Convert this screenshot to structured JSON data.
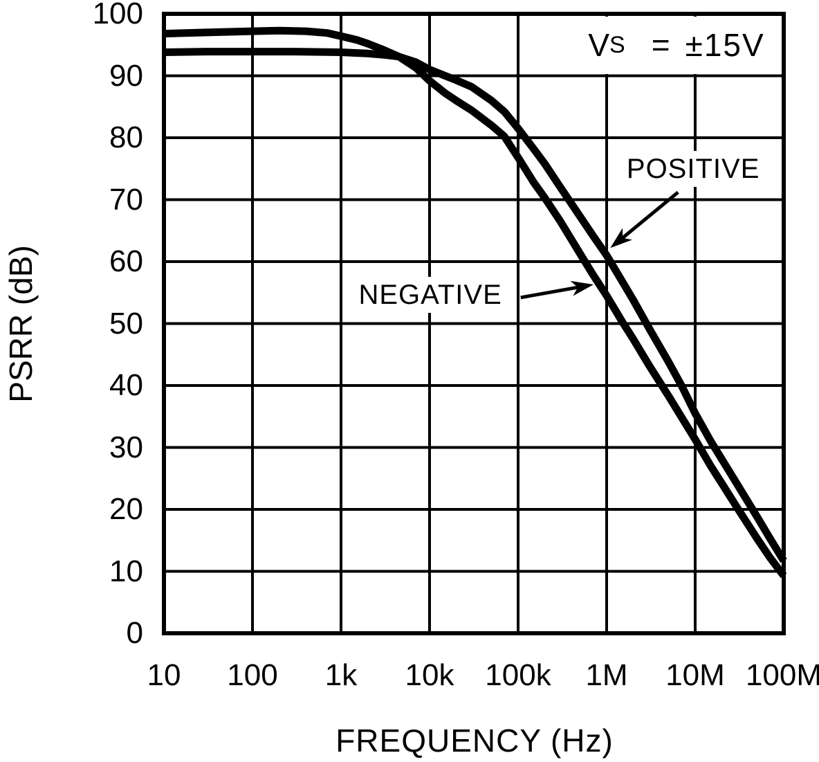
{
  "chart_data": {
    "type": "line",
    "title": "",
    "xlabel": "FREQUENCY (Hz)",
    "ylabel": "PSRR (dB)",
    "x_scale": "log",
    "xlim": [
      10,
      100000000
    ],
    "ylim": [
      0,
      100
    ],
    "grid": true,
    "legend_position": "none",
    "background_color": "#ffffff",
    "line_color": "#000000",
    "x_ticks": [
      {
        "f": 10,
        "label": "10"
      },
      {
        "f": 100,
        "label": "100"
      },
      {
        "f": 1000,
        "label": "1k"
      },
      {
        "f": 10000,
        "label": "10k"
      },
      {
        "f": 100000,
        "label": "100k"
      },
      {
        "f": 1000000,
        "label": "1M"
      },
      {
        "f": 10000000,
        "label": "10M"
      },
      {
        "f": 100000000,
        "label": "100M"
      }
    ],
    "y_ticks": [
      {
        "db": 0,
        "label": "0"
      },
      {
        "db": 10,
        "label": "10"
      },
      {
        "db": 20,
        "label": "20"
      },
      {
        "db": 30,
        "label": "30"
      },
      {
        "db": 40,
        "label": "40"
      },
      {
        "db": 50,
        "label": "50"
      },
      {
        "db": 60,
        "label": "60"
      },
      {
        "db": 70,
        "label": "70"
      },
      {
        "db": 80,
        "label": "80"
      },
      {
        "db": 90,
        "label": "90"
      },
      {
        "db": 100,
        "label": "100"
      }
    ],
    "annotation": {
      "text": "VS = ±15V",
      "var": "V",
      "sub": "S",
      "eq": "=",
      "value": "±15V"
    },
    "series": [
      {
        "name": "POSITIVE",
        "label_pos": {
          "f": 9500000,
          "db": 75
        },
        "arrow": {
          "from": {
            "f": 6400000,
            "db": 71.2
          },
          "to": {
            "f": 1100000,
            "db": 62.2
          }
        },
        "points": [
          [
            10,
            93.8
          ],
          [
            30,
            93.9
          ],
          [
            100,
            93.9
          ],
          [
            300,
            93.9
          ],
          [
            1000,
            93.8
          ],
          [
            2000,
            93.6
          ],
          [
            3000,
            93.4
          ],
          [
            4500,
            93.1
          ],
          [
            7000,
            92.2
          ],
          [
            10000,
            91.0
          ],
          [
            15000,
            90.0
          ],
          [
            20000,
            89.3
          ],
          [
            30000,
            88.2
          ],
          [
            50000,
            86.0
          ],
          [
            70000,
            84.2
          ],
          [
            100000,
            81.5
          ],
          [
            150000,
            78.2
          ],
          [
            200000,
            75.8
          ],
          [
            300000,
            72.0
          ],
          [
            500000,
            67.3
          ],
          [
            700000,
            64.2
          ],
          [
            1000000,
            61.0
          ],
          [
            1500000,
            56.8
          ],
          [
            2000000,
            53.8
          ],
          [
            3000000,
            49.3
          ],
          [
            5000000,
            43.8
          ],
          [
            7000000,
            40.0
          ],
          [
            10000000,
            35.5
          ],
          [
            15000000,
            31.0
          ],
          [
            20000000,
            28.1
          ],
          [
            30000000,
            24.0
          ],
          [
            50000000,
            18.8
          ],
          [
            70000000,
            15.3
          ],
          [
            100000000,
            11.7
          ]
        ]
      },
      {
        "name": "NEGATIVE",
        "label_pos": {
          "f": 10200,
          "db": 54.6
        },
        "arrow": {
          "from": {
            "f": 107000,
            "db": 54.2
          },
          "to": {
            "f": 710000,
            "db": 56.3
          }
        },
        "points": [
          [
            10,
            96.8
          ],
          [
            30,
            97.0
          ],
          [
            100,
            97.2
          ],
          [
            200,
            97.3
          ],
          [
            400,
            97.2
          ],
          [
            700,
            96.9
          ],
          [
            1000,
            96.4
          ],
          [
            1500,
            95.8
          ],
          [
            2000,
            95.2
          ],
          [
            3000,
            94.2
          ],
          [
            4500,
            93.1
          ],
          [
            7000,
            91.3
          ],
          [
            10000,
            89.2
          ],
          [
            15000,
            87.2
          ],
          [
            20000,
            86.0
          ],
          [
            30000,
            84.4
          ],
          [
            50000,
            82.0
          ],
          [
            70000,
            80.2
          ],
          [
            100000,
            76.8
          ],
          [
            150000,
            72.8
          ],
          [
            200000,
            70.3
          ],
          [
            300000,
            66.5
          ],
          [
            500000,
            61.3
          ],
          [
            700000,
            57.9
          ],
          [
            1000000,
            54.5
          ],
          [
            1500000,
            50.3
          ],
          [
            2000000,
            47.5
          ],
          [
            3000000,
            43.3
          ],
          [
            5000000,
            38.3
          ],
          [
            7000000,
            34.9
          ],
          [
            10000000,
            31.3
          ],
          [
            15000000,
            27.0
          ],
          [
            20000000,
            24.2
          ],
          [
            30000000,
            20.2
          ],
          [
            50000000,
            15.3
          ],
          [
            70000000,
            12.2
          ],
          [
            100000000,
            9.3
          ]
        ]
      }
    ]
  }
}
